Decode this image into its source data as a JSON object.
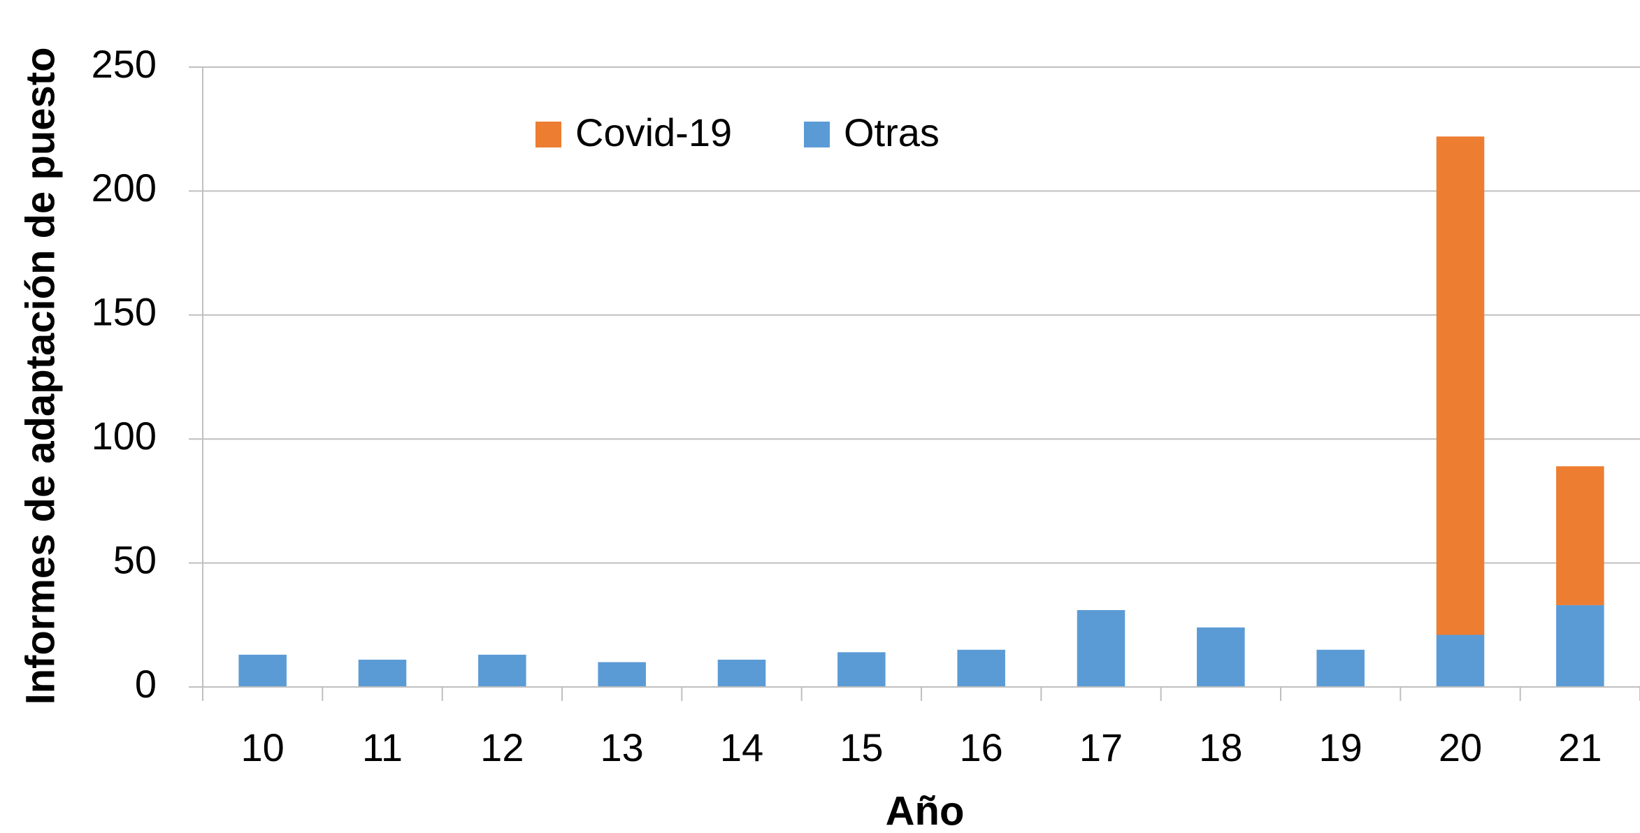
{
  "chart_data": {
    "type": "stacked_bar",
    "y_label": "Informes de adaptación de puesto",
    "x_label": "Año",
    "categories": [
      "10",
      "11",
      "12",
      "13",
      "14",
      "15",
      "16",
      "17",
      "18",
      "19",
      "20",
      "21"
    ],
    "series": [
      {
        "name": "Covid-19",
        "color": "#ed7d31",
        "values": [
          0,
          0,
          0,
          0,
          0,
          0,
          0,
          0,
          0,
          0,
          201,
          56
        ]
      },
      {
        "name": "Otras",
        "color": "#5b9bd5",
        "values": [
          13,
          11,
          13,
          10,
          11,
          14,
          15,
          31,
          24,
          15,
          21,
          33
        ]
      }
    ],
    "ylim": [
      0,
      250
    ],
    "yticks": [
      0,
      50,
      100,
      150,
      200,
      250
    ],
    "grid": true,
    "legend": "top"
  }
}
